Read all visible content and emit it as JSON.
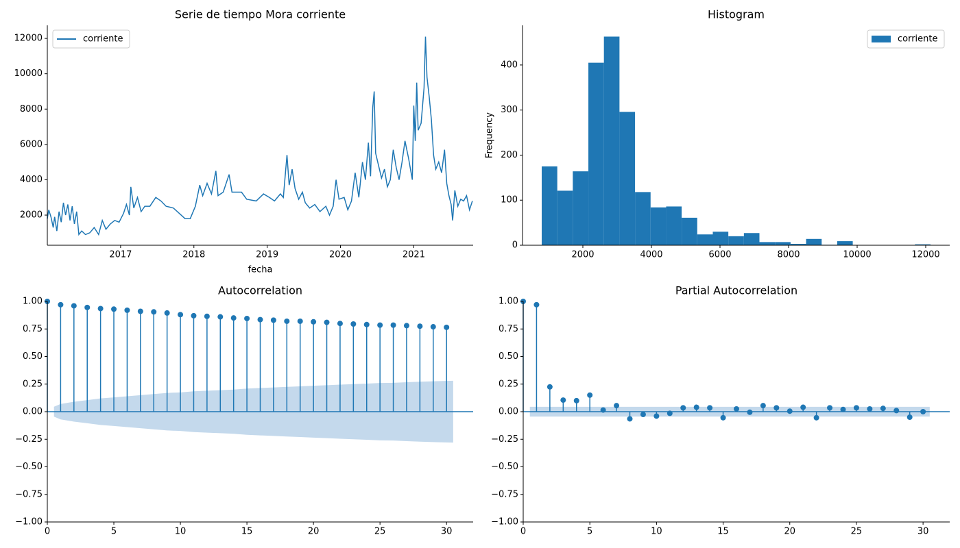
{
  "chart_data": [
    {
      "type": "line",
      "title": "Serie de tiempo Mora corriente",
      "x_label": "fecha",
      "legend": "upper left",
      "xlim": [
        2016.0,
        2021.81
      ],
      "xticks": [
        2017,
        2018,
        2019,
        2020,
        2021
      ],
      "ylim": [
        295,
        12740
      ],
      "yticks": [
        2000,
        4000,
        6000,
        8000,
        10000,
        12000
      ],
      "series": [
        {
          "name": "corriente",
          "color": "#1f77b4",
          "x": [
            2016.0,
            2016.02,
            2016.05,
            2016.08,
            2016.1,
            2016.13,
            2016.16,
            2016.19,
            2016.22,
            2016.25,
            2016.28,
            2016.31,
            2016.34,
            2016.37,
            2016.4,
            2016.43,
            2016.47,
            2016.52,
            2016.58,
            2016.64,
            2016.7,
            2016.75,
            2016.8,
            2016.86,
            2016.92,
            2016.98,
            2017.04,
            2017.08,
            2017.12,
            2017.14,
            2017.18,
            2017.23,
            2017.28,
            2017.33,
            2017.4,
            2017.48,
            2017.55,
            2017.62,
            2017.72,
            2017.8,
            2017.88,
            2017.95,
            2018.02,
            2018.08,
            2018.12,
            2018.18,
            2018.24,
            2018.3,
            2018.33,
            2018.4,
            2018.48,
            2018.52,
            2018.65,
            2018.72,
            2018.85,
            2018.95,
            2019.03,
            2019.1,
            2019.18,
            2019.22,
            2019.27,
            2019.3,
            2019.34,
            2019.38,
            2019.43,
            2019.48,
            2019.52,
            2019.58,
            2019.65,
            2019.72,
            2019.8,
            2019.85,
            2019.9,
            2019.94,
            2019.98,
            2020.05,
            2020.1,
            2020.15,
            2020.2,
            2020.25,
            2020.3,
            2020.34,
            2020.38,
            2020.41,
            2020.44,
            2020.46,
            2020.48,
            2020.52,
            2020.56,
            2020.6,
            2020.64,
            2020.68,
            2020.72,
            2020.76,
            2020.8,
            2020.84,
            2020.88,
            2020.93,
            2020.98,
            2021.0,
            2021.02,
            2021.04,
            2021.06,
            2021.1,
            2021.14,
            2021.16,
            2021.18,
            2021.21,
            2021.24,
            2021.27,
            2021.3,
            2021.34,
            2021.38,
            2021.42,
            2021.45,
            2021.48,
            2021.51,
            2021.53,
            2021.56,
            2021.6,
            2021.64,
            2021.68,
            2021.72,
            2021.76,
            2021.8
          ],
          "values": [
            1800,
            2300,
            1900,
            1300,
            1900,
            1100,
            2200,
            1600,
            2700,
            2000,
            2600,
            1700,
            2500,
            1500,
            2200,
            900,
            1100,
            900,
            1000,
            1300,
            900,
            1700,
            1200,
            1500,
            1700,
            1600,
            2100,
            2600,
            2000,
            3600,
            2400,
            3000,
            2200,
            2500,
            2500,
            3000,
            2800,
            2500,
            2400,
            2100,
            1800,
            1800,
            2500,
            3700,
            3100,
            3800,
            3200,
            4500,
            3100,
            3300,
            4300,
            3300,
            3300,
            2900,
            2800,
            3200,
            3000,
            2800,
            3200,
            3000,
            5400,
            3700,
            4600,
            3500,
            2900,
            3300,
            2700,
            2400,
            2600,
            2200,
            2500,
            2000,
            2500,
            4000,
            2900,
            3000,
            2300,
            2800,
            4400,
            3000,
            5000,
            4000,
            6100,
            4200,
            8100,
            9000,
            5500,
            4800,
            4100,
            4600,
            3600,
            4000,
            5700,
            4700,
            4000,
            5000,
            6200,
            5200,
            4000,
            8200,
            6200,
            9500,
            6800,
            7200,
            9200,
            12100,
            9800,
            8700,
            7400,
            5400,
            4600,
            5000,
            4400,
            5700,
            3800,
            3100,
            2600,
            1700,
            3400,
            2500,
            2900,
            2800,
            3100,
            2300,
            2800
          ]
        }
      ]
    },
    {
      "type": "histogram",
      "title": "Histogram",
      "y_label": "Frequency",
      "legend": "upper right",
      "xlim": [
        240,
        12700
      ],
      "xticks": [
        2000,
        4000,
        6000,
        8000,
        10000,
        12000
      ],
      "ylim": [
        0,
        488
      ],
      "yticks": [
        0,
        100,
        200,
        300,
        400
      ],
      "series": [
        {
          "name": "corriente",
          "color": "#1f77b4",
          "bins": [
            800,
            1254,
            1707,
            2161,
            2614,
            3068,
            3522,
            3975,
            4429,
            4882,
            5336,
            5790,
            6243,
            6697,
            7150,
            7604,
            8058,
            8511,
            8965,
            9418,
            9872,
            10326,
            10779,
            11233,
            11686,
            12140
          ],
          "values": [
            175,
            121,
            164,
            405,
            463,
            296,
            118,
            84,
            86,
            61,
            24,
            30,
            20,
            27,
            7,
            7,
            3,
            14,
            1,
            9,
            0,
            0,
            0,
            0,
            2
          ]
        }
      ]
    },
    {
      "type": "stem",
      "title": "Autocorrelation",
      "color": "#1f77b4",
      "band_color": "#c4d9ec",
      "xlim": [
        0,
        32
      ],
      "xticks": [
        0,
        5,
        10,
        15,
        20,
        25,
        30
      ],
      "ylim": [
        -1,
        1
      ],
      "yticks": [
        {
          "value": -1,
          "label": "−1.00"
        },
        {
          "value": -0.75,
          "label": "−0.75"
        },
        {
          "value": -0.5,
          "label": "−0.50"
        },
        {
          "value": -0.25,
          "label": "−0.25"
        },
        {
          "value": 0,
          "label": "0.00"
        },
        {
          "value": 0.25,
          "label": "0.25"
        },
        {
          "value": 0.5,
          "label": "0.50"
        },
        {
          "value": 0.75,
          "label": "0.75"
        },
        {
          "value": 1,
          "label": "1.00"
        }
      ],
      "values": [
        1,
        0.97,
        0.96,
        0.945,
        0.935,
        0.93,
        0.92,
        0.91,
        0.905,
        0.895,
        0.88,
        0.87,
        0.865,
        0.86,
        0.85,
        0.845,
        0.835,
        0.83,
        0.82,
        0.82,
        0.815,
        0.81,
        0.8,
        0.795,
        0.79,
        0.785,
        0.785,
        0.78,
        0.775,
        0.77,
        0.765
      ],
      "confidence": [
        0.045,
        0.07,
        0.09,
        0.105,
        0.12,
        0.13,
        0.14,
        0.15,
        0.16,
        0.17,
        0.175,
        0.185,
        0.19,
        0.195,
        0.2,
        0.21,
        0.215,
        0.22,
        0.225,
        0.23,
        0.235,
        0.24,
        0.245,
        0.25,
        0.255,
        0.26,
        0.262,
        0.267,
        0.272,
        0.276,
        0.28
      ]
    },
    {
      "type": "stem",
      "title": "Partial Autocorrelation",
      "color": "#1f77b4",
      "band_color": "#c4d9ec",
      "xlim": [
        0,
        32
      ],
      "xticks": [
        0,
        5,
        10,
        15,
        20,
        25,
        30
      ],
      "ylim": [
        -1,
        1
      ],
      "yticks": [
        {
          "value": -1,
          "label": "−1.00"
        },
        {
          "value": -0.75,
          "label": "−0.75"
        },
        {
          "value": -0.5,
          "label": "−0.50"
        },
        {
          "value": -0.25,
          "label": "−0.25"
        },
        {
          "value": 0,
          "label": "0.00"
        },
        {
          "value": 0.25,
          "label": "0.25"
        },
        {
          "value": 0.5,
          "label": "0.50"
        },
        {
          "value": 0.75,
          "label": "0.75"
        },
        {
          "value": 1,
          "label": "1.00"
        }
      ],
      "values": [
        1,
        0.97,
        0.225,
        0.105,
        0.1,
        0.15,
        0.015,
        0.055,
        -0.065,
        -0.025,
        -0.04,
        -0.015,
        0.035,
        0.04,
        0.035,
        -0.055,
        0.025,
        -0.005,
        0.055,
        0.035,
        0.005,
        0.04,
        -0.055,
        0.035,
        0.02,
        0.035,
        0.025,
        0.03,
        0.01,
        -0.05,
        0.0
      ],
      "confidence": [
        0.044,
        0.044,
        0.044,
        0.044,
        0.044,
        0.044,
        0.044,
        0.044,
        0.044,
        0.044,
        0.044,
        0.044,
        0.044,
        0.044,
        0.044,
        0.044,
        0.044,
        0.044,
        0.044,
        0.044,
        0.044,
        0.044,
        0.044,
        0.044,
        0.044,
        0.044,
        0.044,
        0.044,
        0.044,
        0.044,
        0.044
      ]
    }
  ]
}
